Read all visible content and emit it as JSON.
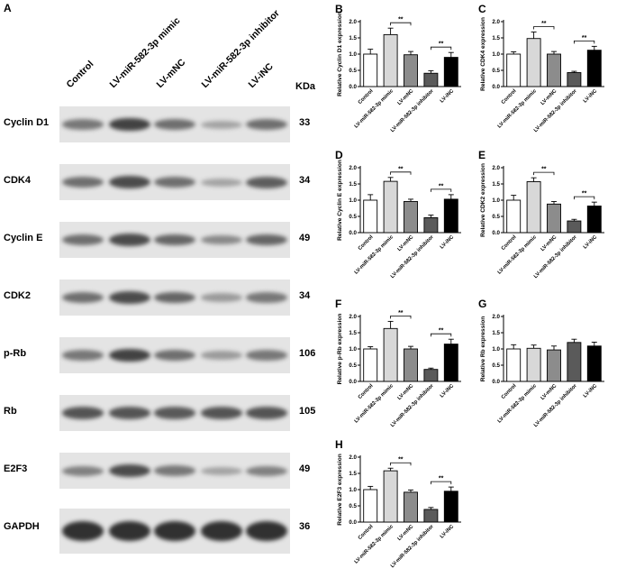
{
  "figure": {
    "panel_A_letter": "A",
    "lanes": [
      "Control",
      "LV-miR-582-3p mimic",
      "LV-mNC",
      "LV-miR-582-3p inhibitor",
      "LV-iNC"
    ],
    "kda_header": "KDa",
    "blots": [
      {
        "protein": "Cyclin D1",
        "kda": "33",
        "band_intensity": [
          0.55,
          0.85,
          0.6,
          0.3,
          0.6
        ]
      },
      {
        "protein": "CDK4",
        "kda": "34",
        "band_intensity": [
          0.6,
          0.8,
          0.6,
          0.3,
          0.7
        ]
      },
      {
        "protein": "Cyclin E",
        "kda": "49",
        "band_intensity": [
          0.6,
          0.8,
          0.65,
          0.45,
          0.65
        ]
      },
      {
        "protein": "CDK2",
        "kda": "34",
        "band_intensity": [
          0.6,
          0.8,
          0.65,
          0.35,
          0.55
        ]
      },
      {
        "protein": "p-Rb",
        "kda": "106",
        "band_intensity": [
          0.55,
          0.85,
          0.6,
          0.35,
          0.55
        ]
      },
      {
        "protein": "Rb",
        "kda": "105",
        "band_intensity": [
          0.75,
          0.75,
          0.72,
          0.75,
          0.75
        ]
      },
      {
        "protein": "E2F3",
        "kda": "49",
        "band_intensity": [
          0.5,
          0.8,
          0.55,
          0.3,
          0.5
        ]
      },
      {
        "protein": "GAPDH",
        "kda": "36",
        "band_intensity": [
          0.95,
          0.95,
          0.95,
          0.95,
          0.95
        ]
      }
    ],
    "sig_label": "**"
  },
  "chart_data": [
    {
      "panel": "B",
      "type": "bar",
      "ylabel": "Relative Cyclin D1 expression",
      "categories": [
        "Control",
        "LV-miR-582-3p mimic",
        "LV-mNC",
        "LV-miR-582-3p inhibitor",
        "LV-iNC"
      ],
      "values": [
        1.0,
        1.6,
        0.98,
        0.41,
        0.9
      ],
      "errors": [
        0.15,
        0.2,
        0.1,
        0.08,
        0.15
      ],
      "ylim": [
        0,
        2.0
      ],
      "yticks": [
        "0.0",
        "0.5",
        "1.0",
        "1.5",
        "2.0"
      ],
      "bar_colors": [
        "#ffffff",
        "#d8d8d8",
        "#8c8c8c",
        "#5a5a5a",
        "#000000"
      ]
    },
    {
      "panel": "C",
      "type": "bar",
      "ylabel": "Relative CDK4 expression",
      "categories": [
        "Control",
        "LV-miR-582-3p mimic",
        "LV-mNC",
        "LV-miR-582-3p inhibitor",
        "LV-iNC"
      ],
      "values": [
        1.0,
        1.48,
        1.0,
        0.43,
        1.12
      ],
      "errors": [
        0.07,
        0.2,
        0.08,
        0.04,
        0.12
      ],
      "ylim": [
        0,
        2.0
      ],
      "yticks": [
        "0.0",
        "0.5",
        "1.0",
        "1.5",
        "2.0"
      ],
      "bar_colors": [
        "#ffffff",
        "#d8d8d8",
        "#8c8c8c",
        "#5a5a5a",
        "#000000"
      ]
    },
    {
      "panel": "D",
      "type": "bar",
      "ylabel": "Relative Cyclin E expression",
      "categories": [
        "Control",
        "LV-miR-582-3p mimic",
        "LV-mNC",
        "LV-miR-582-3p inhibitor",
        "LV-iNC"
      ],
      "values": [
        1.0,
        1.58,
        0.96,
        0.46,
        1.03
      ],
      "errors": [
        0.17,
        0.12,
        0.07,
        0.08,
        0.14
      ],
      "ylim": [
        0,
        2.0
      ],
      "yticks": [
        "0.0",
        "0.5",
        "1.0",
        "1.5",
        "2.0"
      ],
      "bar_colors": [
        "#ffffff",
        "#d8d8d8",
        "#8c8c8c",
        "#5a5a5a",
        "#000000"
      ]
    },
    {
      "panel": "E",
      "type": "bar",
      "ylabel": "Relative CDK2 expression",
      "categories": [
        "Control",
        "LV-miR-582-3p mimic",
        "LV-mNC",
        "LV-miR-582-3p inhibitor",
        "LV-iNC"
      ],
      "values": [
        1.0,
        1.57,
        0.88,
        0.36,
        0.82
      ],
      "errors": [
        0.15,
        0.12,
        0.08,
        0.05,
        0.12
      ],
      "ylim": [
        0,
        2.0
      ],
      "yticks": [
        "0.0",
        "0.5",
        "1.0",
        "1.5",
        "2.0"
      ],
      "bar_colors": [
        "#ffffff",
        "#d8d8d8",
        "#8c8c8c",
        "#5a5a5a",
        "#000000"
      ]
    },
    {
      "panel": "F",
      "type": "bar",
      "ylabel": "Relative p-Rb expression",
      "categories": [
        "Control",
        "LV-miR-582-3p mimic",
        "LV-mNC",
        "LV-miR-582-3p inhibitor",
        "LV-iNC"
      ],
      "values": [
        1.0,
        1.63,
        1.0,
        0.37,
        1.15
      ],
      "errors": [
        0.07,
        0.22,
        0.08,
        0.04,
        0.15
      ],
      "ylim": [
        0,
        2.0
      ],
      "yticks": [
        "0.0",
        "0.5",
        "1.0",
        "1.5",
        "2.0"
      ],
      "bar_colors": [
        "#ffffff",
        "#d8d8d8",
        "#8c8c8c",
        "#5a5a5a",
        "#000000"
      ]
    },
    {
      "panel": "G",
      "type": "bar",
      "ylabel": "Relative Rb expression",
      "categories": [
        "Control",
        "LV-miR-582-3p mimic",
        "LV-mNC",
        "LV-miR-582-3p inhibitor",
        "LV-iNC"
      ],
      "values": [
        1.0,
        1.02,
        0.97,
        1.2,
        1.09
      ],
      "errors": [
        0.13,
        0.1,
        0.12,
        0.1,
        0.12
      ],
      "ylim": [
        0,
        2.0
      ],
      "yticks": [
        "0.0",
        "0.5",
        "1.0",
        "1.5",
        "2.0"
      ],
      "bar_colors": [
        "#ffffff",
        "#d8d8d8",
        "#8c8c8c",
        "#5a5a5a",
        "#000000"
      ]
    },
    {
      "panel": "H",
      "type": "bar",
      "ylabel": "Relative E2F3 expression",
      "categories": [
        "Control",
        "LV-miR-582-3p mimic",
        "LV-mNC",
        "LV-miR-582-3p inhibitor",
        "LV-iNC"
      ],
      "values": [
        1.0,
        1.58,
        0.92,
        0.39,
        0.95
      ],
      "errors": [
        0.1,
        0.08,
        0.07,
        0.06,
        0.13
      ],
      "ylim": [
        0,
        2.0
      ],
      "yticks": [
        "0.0",
        "0.5",
        "1.0",
        "1.5",
        "2.0"
      ],
      "bar_colors": [
        "#ffffff",
        "#d8d8d8",
        "#8c8c8c",
        "#5a5a5a",
        "#000000"
      ]
    }
  ]
}
